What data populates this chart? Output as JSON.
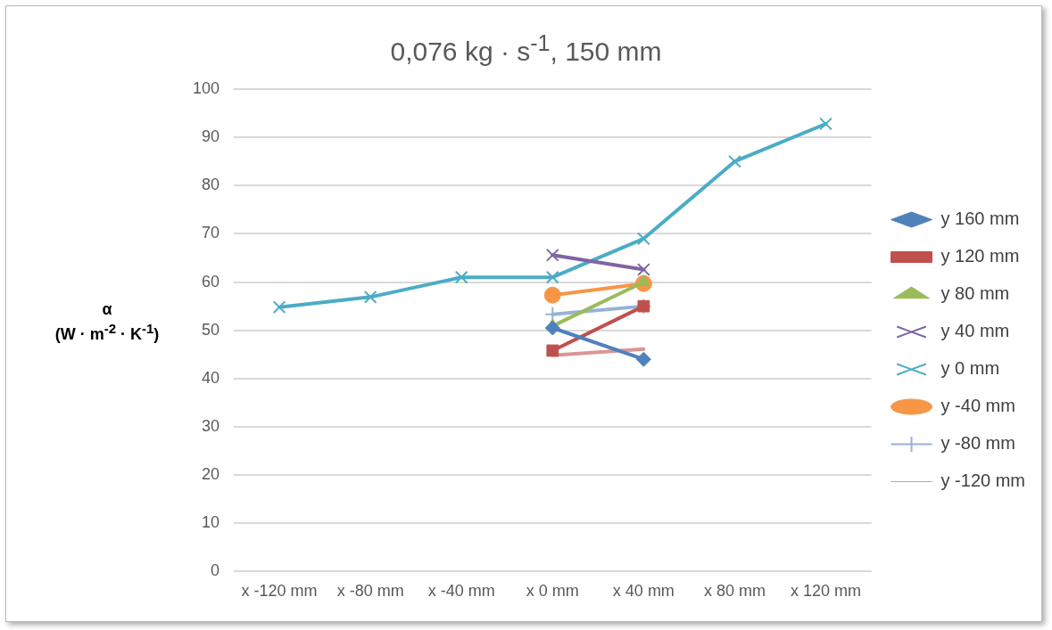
{
  "chart_data": {
    "type": "line",
    "title": "0,076 kg · s$^{-1}$, 150 mm",
    "ylabel": "α\n(W · m$^{-2}$ · K$^{-1}$)",
    "categories": [
      "x -120 mm",
      "x -80 mm",
      "x -40 mm",
      "x 0 mm",
      "x 40 mm",
      "x 80 mm",
      "x 120 mm"
    ],
    "ylim": [
      0,
      100
    ],
    "yticks": [
      0,
      10,
      20,
      30,
      40,
      50,
      60,
      70,
      80,
      90,
      100
    ],
    "grid": "y",
    "legend": "right",
    "series": [
      {
        "name": "y 160 mm",
        "color": "#4f81bd",
        "marker": "diamond",
        "values": [
          null,
          null,
          null,
          50.5,
          44,
          null,
          null
        ]
      },
      {
        "name": "y 120 mm",
        "color": "#c0504d",
        "marker": "square",
        "values": [
          null,
          null,
          null,
          45.8,
          55,
          null,
          null
        ]
      },
      {
        "name": "y 80 mm",
        "color": "#9bbb59",
        "marker": "triangle",
        "values": [
          null,
          null,
          null,
          50.9,
          60,
          null,
          null
        ]
      },
      {
        "name": "y 40 mm",
        "color": "#8064a2",
        "marker": "cross",
        "values": [
          null,
          null,
          null,
          65.6,
          62.6,
          null,
          null
        ]
      },
      {
        "name": "y 0 mm",
        "color": "#4bacc6",
        "marker": "cross",
        "values": [
          54.8,
          56.9,
          61,
          61,
          69,
          85,
          92.8
        ]
      },
      {
        "name": "y -40 mm",
        "color": "#f79646",
        "marker": "circle",
        "values": [
          null,
          null,
          null,
          57.3,
          59.7,
          null,
          null
        ]
      },
      {
        "name": "y -80 mm",
        "color": "#95b3d7",
        "marker": "plus",
        "values": [
          null,
          null,
          null,
          53.3,
          55,
          null,
          null
        ]
      },
      {
        "name": "y -120 mm",
        "color": "#d99694",
        "marker": "none",
        "values": [
          null,
          null,
          null,
          44.8,
          46.1,
          null,
          null
        ]
      }
    ]
  }
}
